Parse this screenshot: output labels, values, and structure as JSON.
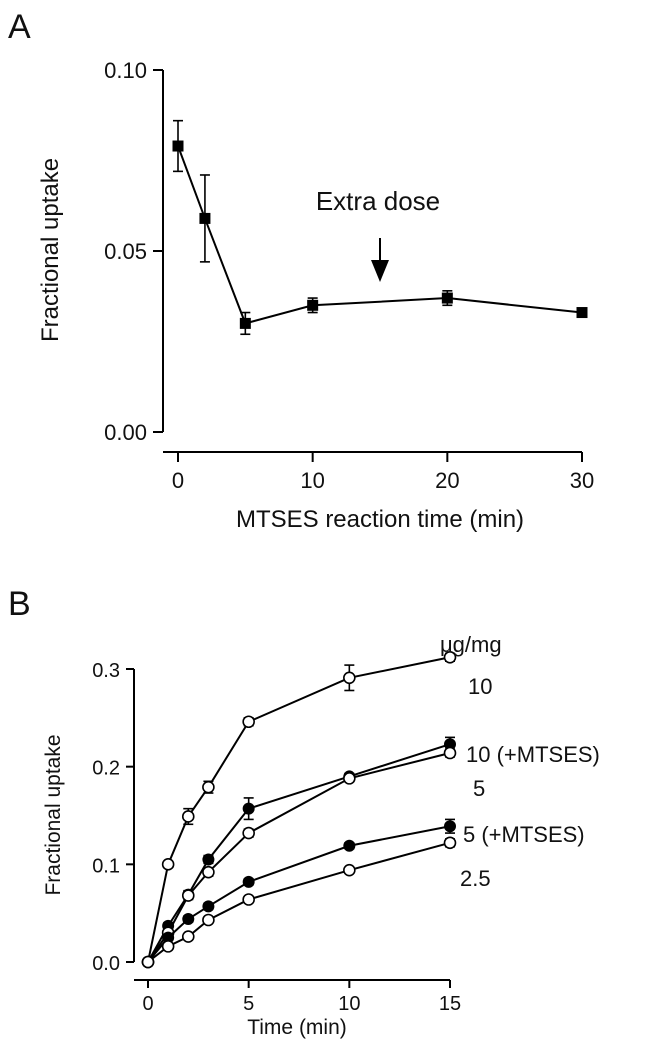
{
  "panels": {
    "a_letter": "A",
    "b_letter": "B"
  },
  "chart_data": [
    {
      "type": "line",
      "panel": "A",
      "title": "",
      "xlabel": "MTSES reaction time (min)",
      "ylabel": "Fractional uptake",
      "xlim": [
        0,
        30
      ],
      "ylim": [
        0,
        0.1
      ],
      "xticks": [
        0,
        10,
        20,
        30
      ],
      "xtick_labels": [
        "0",
        "10",
        "20",
        "30"
      ],
      "yticks": [
        0,
        0.05,
        0.1
      ],
      "ytick_labels": [
        "0.00",
        "0.05",
        "0.10"
      ],
      "grid": false,
      "series": [
        {
          "name": "MTSES",
          "marker": "filled-square",
          "x": [
            0,
            2,
            5,
            10,
            20,
            30
          ],
          "y": [
            0.079,
            0.059,
            0.03,
            0.035,
            0.037,
            0.033
          ],
          "err": [
            0.007,
            0.012,
            0.003,
            0.002,
            0.002,
            0.001
          ]
        }
      ],
      "annotation": {
        "text": "Extra dose",
        "x": 15,
        "arrow": "down"
      }
    },
    {
      "type": "line",
      "panel": "B",
      "title": "",
      "xlabel": "Time (min)",
      "ylabel": "Fractional uptake",
      "xlim": [
        0,
        15
      ],
      "ylim": [
        0,
        0.3
      ],
      "xticks": [
        0,
        5,
        10,
        15
      ],
      "xtick_labels": [
        "0",
        "5",
        "10",
        "15"
      ],
      "yticks": [
        0,
        0.1,
        0.2,
        0.3
      ],
      "ytick_labels": [
        "0.0",
        "0.1",
        "0.2",
        "0.3"
      ],
      "grid": false,
      "legend_title": "μg/mg",
      "series": [
        {
          "name": "10",
          "marker": "open-circle",
          "x": [
            0,
            1,
            2,
            3,
            5,
            10,
            15
          ],
          "y": [
            0,
            0.1,
            0.149,
            0.179,
            0.246,
            0.291,
            0.312
          ],
          "err": [
            0,
            0.003,
            0.008,
            0.006,
            0.004,
            0.013,
            0.004
          ]
        },
        {
          "name": "10 (+MTSES)",
          "marker": "filled-circle",
          "x": [
            0,
            1,
            2,
            3,
            5,
            10,
            15
          ],
          "y": [
            0,
            0.037,
            0.069,
            0.105,
            0.157,
            0.19,
            0.223
          ],
          "err": [
            0,
            0.003,
            0.004,
            0.004,
            0.011,
            0.003,
            0.007
          ]
        },
        {
          "name": "5",
          "marker": "open-circle",
          "x": [
            0,
            1,
            2,
            3,
            5,
            10,
            15
          ],
          "y": [
            0,
            0.03,
            0.068,
            0.092,
            0.132,
            0.188,
            0.214
          ],
          "err": [
            0,
            0.003,
            0.004,
            0.004,
            0.004,
            0.003,
            0.004
          ]
        },
        {
          "name": "5 (+MTSES)",
          "marker": "filled-circle",
          "x": [
            0,
            1,
            2,
            3,
            5,
            10,
            15
          ],
          "y": [
            0,
            0.025,
            0.044,
            0.057,
            0.082,
            0.119,
            0.139
          ],
          "err": [
            0,
            0.002,
            0.003,
            0.003,
            0.003,
            0.003,
            0.007
          ]
        },
        {
          "name": "2.5",
          "marker": "open-circle",
          "x": [
            0,
            1,
            2,
            3,
            5,
            10,
            15
          ],
          "y": [
            0,
            0.016,
            0.026,
            0.043,
            0.064,
            0.094,
            0.122
          ],
          "err": [
            0,
            0.002,
            0.002,
            0.002,
            0.002,
            0.002,
            0.004
          ]
        }
      ]
    }
  ]
}
